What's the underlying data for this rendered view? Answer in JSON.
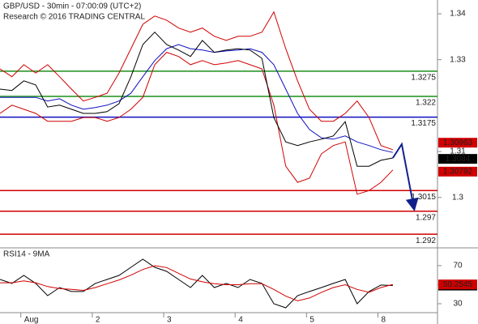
{
  "chart_data": [
    {
      "type": "line",
      "title": "GBP/USD - 30min - 07:00:09 (UTC+2)",
      "subtitle": "Research © 2016 TRADING CENTRAL",
      "x": [
        0,
        4,
        8,
        12,
        16,
        20,
        24,
        28,
        32,
        36,
        40,
        44,
        48,
        52,
        56,
        60,
        64,
        68,
        72,
        76,
        80,
        84,
        88,
        92,
        96,
        100,
        104,
        108,
        112,
        116,
        120,
        124,
        128,
        132
      ],
      "series": [
        {
          "color": "#d00000",
          "values": [
            1.328,
            1.3263,
            1.3289,
            1.3271,
            1.3289,
            1.3263,
            1.3236,
            1.321,
            1.3218,
            1.3227,
            1.3271,
            1.3324,
            1.3377,
            1.3395,
            1.3386,
            1.3369,
            1.336,
            1.3369,
            1.3351,
            1.3342,
            1.3351,
            1.3351,
            1.336,
            1.3404,
            1.3324,
            1.3254,
            1.3192,
            1.3166,
            1.3166,
            1.3183,
            1.321,
            1.3174,
            1.3113,
            1.3104
          ]
        },
        {
          "color": "#d00000",
          "values": [
            1.3183,
            1.3201,
            1.3192,
            1.3183,
            1.3166,
            1.3166,
            1.3166,
            1.3174,
            1.3174,
            1.3166,
            1.3174,
            1.3192,
            1.3218,
            1.3289,
            1.3316,
            1.3307,
            1.3289,
            1.3298,
            1.3289,
            1.3293,
            1.3298,
            1.3289,
            1.328,
            1.3201,
            1.3068,
            1.3033,
            1.3042,
            1.3095,
            1.3113,
            1.3121,
            1.3007,
            1.3015,
            1.3033,
            1.306
          ]
        },
        {
          "color": "#1010c0",
          "values": [
            1.3218,
            1.3218,
            1.3218,
            1.3218,
            1.321,
            1.3215,
            1.3201,
            1.3192,
            1.3196,
            1.3201,
            1.321,
            1.3227,
            1.3263,
            1.3298,
            1.3324,
            1.3333,
            1.3324,
            1.3321,
            1.3316,
            1.3319,
            1.3321,
            1.3324,
            1.3316,
            1.3289,
            1.3236,
            1.3183,
            1.3148,
            1.313,
            1.3127,
            1.3134,
            1.3121,
            1.3113,
            1.3104,
            1.3098
          ]
        },
        {
          "color": "#000000",
          "values": [
            1.3236,
            1.3233,
            1.3254,
            1.3245,
            1.3197,
            1.3201,
            1.3192,
            1.3183,
            1.3183,
            1.3187,
            1.3204,
            1.3263,
            1.3333,
            1.336,
            1.3333,
            1.3321,
            1.3307,
            1.3342,
            1.3316,
            1.3321,
            1.3324,
            1.3321,
            1.3303,
            1.3174,
            1.3121,
            1.3113,
            1.3121,
            1.3127,
            1.3134,
            1.3165,
            1.3068,
            1.3068,
            1.3081,
            1.3086
          ]
        }
      ],
      "levels": [
        {
          "value": 1.3275,
          "color": "#1a8f1a"
        },
        {
          "value": 1.322,
          "color": "#1a8f1a"
        },
        {
          "value": 1.3175,
          "color": "#1010c0"
        },
        {
          "value": 1.3015,
          "color": "#d00000"
        },
        {
          "value": 1.297,
          "color": "#d00000"
        },
        {
          "value": 1.292,
          "color": "#d00000"
        }
      ],
      "price_tags": [
        {
          "value": 1.30963,
          "color": "#d00000"
        },
        {
          "value": 1.3084,
          "color": "#000000"
        },
        {
          "value": 1.30792,
          "color": "#d00000"
        }
      ],
      "forecast": {
        "color": "#10208a",
        "x": [
          132,
          135,
          139
        ],
        "values": [
          1.3086,
          1.3116,
          1.298
        ]
      },
      "xlim": [
        0,
        147
      ],
      "ylim": [
        1.2892,
        1.343
      ],
      "yticks": [
        1.3,
        1.31,
        1.33,
        1.34
      ]
    },
    {
      "type": "line",
      "title": "RSI14 - 9MA",
      "x": [
        0,
        4,
        8,
        12,
        16,
        20,
        24,
        28,
        32,
        36,
        40,
        44,
        48,
        52,
        56,
        60,
        64,
        68,
        72,
        76,
        80,
        84,
        88,
        92,
        96,
        100,
        104,
        108,
        112,
        116,
        120,
        124,
        128,
        132
      ],
      "series": [
        {
          "color": "#000000",
          "values": [
            55.5,
            51.3,
            59.8,
            51.3,
            38.5,
            47,
            42.8,
            42.8,
            51.3,
            55.5,
            59.8,
            68.3,
            76.8,
            68.3,
            64,
            55.5,
            47,
            59.8,
            47,
            51.3,
            47,
            55.5,
            51.3,
            30,
            25.7,
            38.5,
            42.8,
            47,
            51.3,
            55.5,
            30,
            42.8,
            49.6,
            49.1
          ],
          "last": 49.0873
        },
        {
          "color": "#d00000",
          "values": [
            52,
            52,
            54,
            52,
            48,
            46,
            45,
            44,
            47,
            51,
            55,
            60,
            66,
            70,
            68,
            62,
            56,
            53,
            51,
            50,
            50,
            51,
            51,
            45,
            38,
            33,
            36,
            42,
            47,
            50,
            45,
            42,
            47,
            50.3
          ],
          "last": 50.2545
        }
      ],
      "xlim": [
        0,
        147
      ],
      "ylim": [
        15.5,
        87
      ],
      "yticks": [
        30,
        50,
        70
      ],
      "xticks": [
        {
          "value": 7,
          "label": "Aug"
        },
        {
          "value": 31,
          "label": "2"
        },
        {
          "value": 55,
          "label": "3"
        },
        {
          "value": 79,
          "label": "4"
        },
        {
          "value": 103,
          "label": "5"
        },
        {
          "value": 127,
          "label": "8"
        }
      ]
    }
  ]
}
